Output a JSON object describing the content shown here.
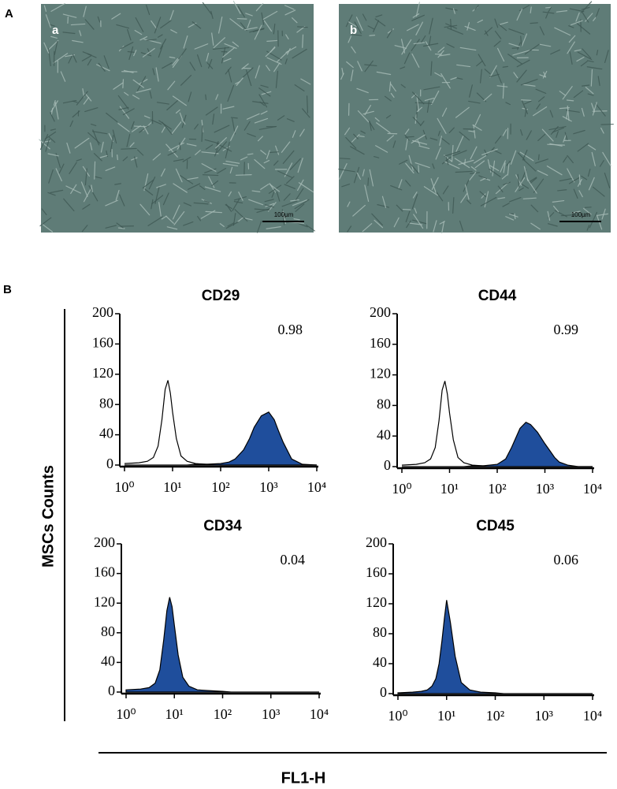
{
  "panel_a": {
    "label": "A",
    "images": [
      {
        "label": "a",
        "scale": "100µm"
      },
      {
        "label": "b",
        "scale": "100µm"
      }
    ]
  },
  "panel_b": {
    "label": "B",
    "y_label": "MSCs Counts",
    "x_label": "FL1-H"
  },
  "chart_data": [
    {
      "type": "histogram",
      "title": "CD29",
      "annotation": "0.98",
      "xscale": "log",
      "x": [
        1,
        2,
        3,
        4,
        5,
        6,
        7,
        8,
        9,
        10,
        12,
        15,
        20,
        30,
        50,
        100,
        150,
        200,
        300,
        400,
        500,
        700,
        1000,
        1300,
        1600,
        2000,
        3000,
        5000,
        10000
      ],
      "series": [
        {
          "color": "none",
          "values": [
            2,
            3,
            5,
            10,
            25,
            60,
            100,
            112,
            95,
            70,
            35,
            12,
            5,
            2,
            1,
            0,
            0,
            0,
            0,
            0,
            0,
            0,
            0,
            0,
            0,
            0,
            0,
            0,
            0
          ]
        },
        {
          "color": "#1f4e9c",
          "values": [
            0,
            0,
            0,
            0,
            0,
            0,
            0,
            0,
            0,
            0,
            0,
            0,
            0,
            1,
            1,
            2,
            4,
            8,
            20,
            35,
            50,
            65,
            70,
            60,
            45,
            30,
            8,
            1,
            0
          ]
        }
      ],
      "xlim": [
        1,
        10000
      ],
      "ylim": [
        0,
        200
      ],
      "xticks": [
        {
          "value": 1,
          "label": "10⁰"
        },
        {
          "value": 10,
          "label": "10¹"
        },
        {
          "value": 100,
          "label": "10²"
        },
        {
          "value": 1000,
          "label": "10³"
        },
        {
          "value": 10000,
          "label": "10⁴"
        }
      ],
      "yticks": [
        0,
        40,
        80,
        120,
        160,
        200
      ]
    },
    {
      "type": "histogram",
      "title": "CD44",
      "annotation": "0.99",
      "xscale": "log",
      "x": [
        1,
        2,
        3,
        4,
        5,
        6,
        7,
        8,
        9,
        10,
        12,
        15,
        20,
        30,
        50,
        100,
        150,
        200,
        300,
        400,
        500,
        700,
        1000,
        1300,
        1600,
        2000,
        3000,
        5000,
        10000
      ],
      "series": [
        {
          "color": "none",
          "values": [
            2,
            3,
            5,
            10,
            25,
            60,
            100,
            112,
            95,
            70,
            35,
            12,
            5,
            2,
            1,
            0,
            0,
            0,
            0,
            0,
            0,
            0,
            0,
            0,
            0,
            0,
            0,
            0,
            0
          ]
        },
        {
          "color": "#1f4e9c",
          "values": [
            0,
            0,
            0,
            0,
            0,
            0,
            0,
            0,
            0,
            0,
            0,
            0,
            0,
            1,
            1,
            3,
            10,
            25,
            50,
            58,
            55,
            45,
            30,
            20,
            12,
            6,
            2,
            0,
            0
          ]
        }
      ],
      "xlim": [
        1,
        10000
      ],
      "ylim": [
        0,
        200
      ],
      "xticks": [
        {
          "value": 1,
          "label": "10⁰"
        },
        {
          "value": 10,
          "label": "10¹"
        },
        {
          "value": 100,
          "label": "10²"
        },
        {
          "value": 1000,
          "label": "10³"
        },
        {
          "value": 10000,
          "label": "10⁴"
        }
      ],
      "yticks": [
        0,
        40,
        80,
        120,
        160,
        200
      ]
    },
    {
      "type": "histogram",
      "title": "CD34",
      "annotation": "0.04",
      "xscale": "log",
      "x": [
        1,
        2,
        3,
        4,
        5,
        6,
        7,
        8,
        9,
        10,
        12,
        15,
        20,
        30,
        50,
        100,
        150,
        200,
        300,
        400,
        500,
        700,
        1000,
        1300,
        1600,
        2000,
        3000,
        5000,
        10000
      ],
      "series": [
        {
          "color": "#1f4e9c",
          "values": [
            3,
            4,
            6,
            12,
            30,
            70,
            110,
            128,
            115,
            90,
            50,
            20,
            8,
            3,
            2,
            1,
            0,
            0,
            0,
            0,
            0,
            0,
            0,
            0,
            0,
            0,
            0,
            0,
            0
          ]
        }
      ],
      "xlim": [
        1,
        10000
      ],
      "ylim": [
        0,
        200
      ],
      "xticks": [
        {
          "value": 1,
          "label": "10⁰"
        },
        {
          "value": 10,
          "label": "10¹"
        },
        {
          "value": 100,
          "label": "10²"
        },
        {
          "value": 1000,
          "label": "10³"
        },
        {
          "value": 10000,
          "label": "10⁴"
        }
      ],
      "yticks": [
        0,
        40,
        80,
        120,
        160,
        200
      ]
    },
    {
      "type": "histogram",
      "title": "CD45",
      "annotation": "0.06",
      "xscale": "log",
      "x": [
        1,
        2,
        3,
        4,
        5,
        6,
        7,
        8,
        9,
        10,
        12,
        15,
        20,
        30,
        50,
        100,
        150,
        200,
        300,
        400,
        500,
        700,
        1000,
        1300,
        1600,
        2000,
        3000,
        5000,
        10000
      ],
      "series": [
        {
          "color": "#1f4e9c",
          "values": [
            1,
            2,
            3,
            5,
            10,
            20,
            40,
            70,
            100,
            125,
            95,
            50,
            15,
            5,
            2,
            1,
            0,
            0,
            0,
            0,
            0,
            0,
            0,
            0,
            0,
            0,
            0,
            0,
            0
          ]
        }
      ],
      "xlim": [
        1,
        10000
      ],
      "ylim": [
        0,
        200
      ],
      "xticks": [
        {
          "value": 1,
          "label": "10⁰"
        },
        {
          "value": 10,
          "label": "10¹"
        },
        {
          "value": 100,
          "label": "10²"
        },
        {
          "value": 1000,
          "label": "10³"
        },
        {
          "value": 10000,
          "label": "10⁴"
        }
      ],
      "yticks": [
        0,
        40,
        80,
        120,
        160,
        200
      ]
    }
  ]
}
